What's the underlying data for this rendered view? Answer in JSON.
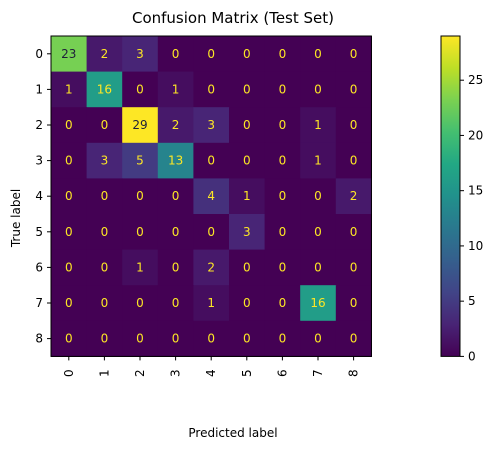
{
  "chart_data": {
    "type": "heatmap",
    "title": "Confusion Matrix (Test Set)",
    "xlabel": "Predicted label",
    "ylabel": "True label",
    "x_categories": [
      "0",
      "1",
      "2",
      "3",
      "4",
      "5",
      "6",
      "7",
      "8"
    ],
    "y_categories": [
      "0",
      "1",
      "2",
      "3",
      "4",
      "5",
      "6",
      "7",
      "8"
    ],
    "matrix": [
      [
        23,
        2,
        3,
        0,
        0,
        0,
        0,
        0,
        0
      ],
      [
        1,
        16,
        0,
        1,
        0,
        0,
        0,
        0,
        0
      ],
      [
        0,
        0,
        29,
        2,
        3,
        0,
        0,
        1,
        0
      ],
      [
        0,
        3,
        5,
        13,
        0,
        0,
        0,
        1,
        0
      ],
      [
        0,
        0,
        0,
        0,
        4,
        1,
        0,
        0,
        2
      ],
      [
        0,
        0,
        0,
        0,
        0,
        3,
        0,
        0,
        0
      ],
      [
        0,
        0,
        1,
        0,
        2,
        0,
        0,
        0,
        0
      ],
      [
        0,
        0,
        0,
        0,
        1,
        0,
        0,
        16,
        0
      ],
      [
        0,
        0,
        0,
        0,
        0,
        0,
        0,
        0,
        0
      ]
    ],
    "colormap": "viridis",
    "value_range": [
      0,
      29
    ],
    "colorbar_ticks": [
      0,
      5,
      10,
      15,
      20,
      25
    ],
    "colorbar_placement": "right",
    "grid": false,
    "x_tick_rotation_deg": 90
  }
}
